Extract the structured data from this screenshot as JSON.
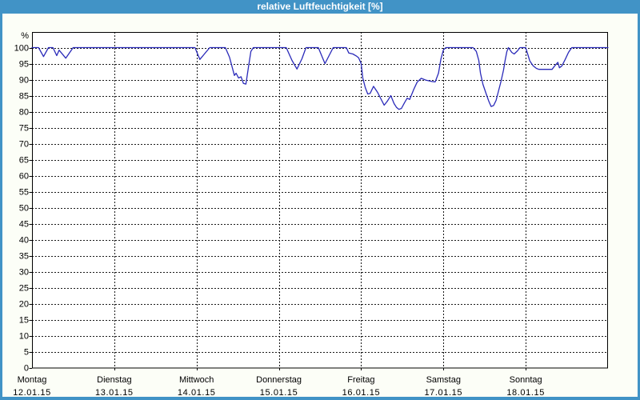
{
  "window": {
    "title": "relative Luftfeuchtigkeit [%]"
  },
  "colors": {
    "titlebar_bg": "#4193C6",
    "window_border": "#4193C6",
    "content_bg": "#FCFEF7",
    "plot_bg": "#FFFFFF",
    "grid": "#1A1A1A",
    "frame": "#000000",
    "series_line": "#2A2AB9",
    "title_text": "#FFFFFF",
    "axis_text": "#000000"
  },
  "chart_data": {
    "type": "line",
    "title": "relative Luftfeuchtigkeit [%]",
    "xlabel": "",
    "ylabel": "%",
    "ylim": [
      0,
      100
    ],
    "ytick_step": 5,
    "yticks": [
      0,
      5,
      10,
      15,
      20,
      25,
      30,
      35,
      40,
      45,
      50,
      55,
      60,
      65,
      70,
      75,
      80,
      85,
      90,
      95,
      100
    ],
    "grid": "dashed",
    "legend": "none",
    "x_axis_days": [
      {
        "label": "Montag",
        "date": "12.01.15"
      },
      {
        "label": "Dienstag",
        "date": "13.01.15"
      },
      {
        "label": "Mittwoch",
        "date": "14.01.15"
      },
      {
        "label": "Donnerstag",
        "date": "15.01.15"
      },
      {
        "label": "Freitag",
        "date": "16.01.15"
      },
      {
        "label": "Samstag",
        "date": "17.01.15"
      },
      {
        "label": "Sonntag",
        "date": "18.01.15"
      }
    ],
    "series": [
      {
        "name": "relative Luftfeuchtigkeit",
        "unit": "%",
        "x_unit": "days_from_12.01.15",
        "points": [
          [
            0.0,
            100
          ],
          [
            0.08,
            100
          ],
          [
            0.14,
            97.2
          ],
          [
            0.2,
            100
          ],
          [
            0.255,
            100
          ],
          [
            0.3,
            97.5
          ],
          [
            0.33,
            99.2
          ],
          [
            0.41,
            96.7
          ],
          [
            0.5,
            100
          ],
          [
            1.0,
            100
          ],
          [
            1.98,
            100
          ],
          [
            2.04,
            96.3
          ],
          [
            2.16,
            100
          ],
          [
            2.35,
            100
          ],
          [
            2.4,
            97
          ],
          [
            2.46,
            91.3
          ],
          [
            2.48,
            92
          ],
          [
            2.51,
            90.5
          ],
          [
            2.54,
            90.9
          ],
          [
            2.57,
            88.8
          ],
          [
            2.6,
            88.6
          ],
          [
            2.63,
            93.8
          ],
          [
            2.66,
            98.8
          ],
          [
            2.69,
            100
          ],
          [
            3.09,
            100
          ],
          [
            3.16,
            96
          ],
          [
            3.22,
            93.3
          ],
          [
            3.28,
            96.5
          ],
          [
            3.33,
            100
          ],
          [
            3.48,
            100
          ],
          [
            3.56,
            95
          ],
          [
            3.66,
            100
          ],
          [
            3.82,
            100
          ],
          [
            3.85,
            98.3
          ],
          [
            3.9,
            98
          ],
          [
            3.94,
            97.4
          ],
          [
            3.97,
            96.8
          ],
          [
            4.0,
            95
          ],
          [
            4.02,
            90.5
          ],
          [
            4.05,
            87.5
          ],
          [
            4.08,
            85.5
          ],
          [
            4.11,
            85.7
          ],
          [
            4.15,
            87.9
          ],
          [
            4.2,
            86
          ],
          [
            4.24,
            84
          ],
          [
            4.28,
            82
          ],
          [
            4.32,
            83.3
          ],
          [
            4.36,
            85
          ],
          [
            4.4,
            82.5
          ],
          [
            4.43,
            81.3
          ],
          [
            4.46,
            80.7
          ],
          [
            4.49,
            81
          ],
          [
            4.53,
            82.9
          ],
          [
            4.56,
            84.2
          ],
          [
            4.59,
            83.8
          ],
          [
            4.64,
            87
          ],
          [
            4.68,
            89.2
          ],
          [
            4.73,
            90.4
          ],
          [
            4.79,
            89.8
          ],
          [
            4.86,
            89.4
          ],
          [
            4.9,
            89.3
          ],
          [
            4.94,
            92
          ],
          [
            4.97,
            96.5
          ],
          [
            5.0,
            99.3
          ],
          [
            5.03,
            100
          ],
          [
            5.36,
            100
          ],
          [
            5.4,
            98.8
          ],
          [
            5.43,
            96
          ],
          [
            5.45,
            92
          ],
          [
            5.48,
            88.5
          ],
          [
            5.52,
            85.5
          ],
          [
            5.55,
            83.3
          ],
          [
            5.58,
            81.6
          ],
          [
            5.61,
            81.9
          ],
          [
            5.64,
            83.5
          ],
          [
            5.67,
            86.5
          ],
          [
            5.7,
            89.5
          ],
          [
            5.73,
            93
          ],
          [
            5.75,
            96
          ],
          [
            5.77,
            98.7
          ],
          [
            5.79,
            100
          ],
          [
            5.83,
            98.5
          ],
          [
            5.86,
            98
          ],
          [
            5.9,
            99
          ],
          [
            5.93,
            100
          ],
          [
            6.0,
            100
          ],
          [
            6.03,
            97.5
          ],
          [
            6.05,
            95.8
          ],
          [
            6.09,
            94.3
          ],
          [
            6.13,
            93.5
          ],
          [
            6.16,
            93.2
          ],
          [
            6.32,
            93.2
          ],
          [
            6.35,
            94.2
          ],
          [
            6.39,
            95.4
          ],
          [
            6.41,
            93.7
          ],
          [
            6.44,
            94.3
          ],
          [
            6.48,
            96.3
          ],
          [
            6.52,
            98.5
          ],
          [
            6.56,
            100
          ],
          [
            6.8,
            100
          ],
          [
            7.0,
            100
          ]
        ]
      }
    ]
  }
}
